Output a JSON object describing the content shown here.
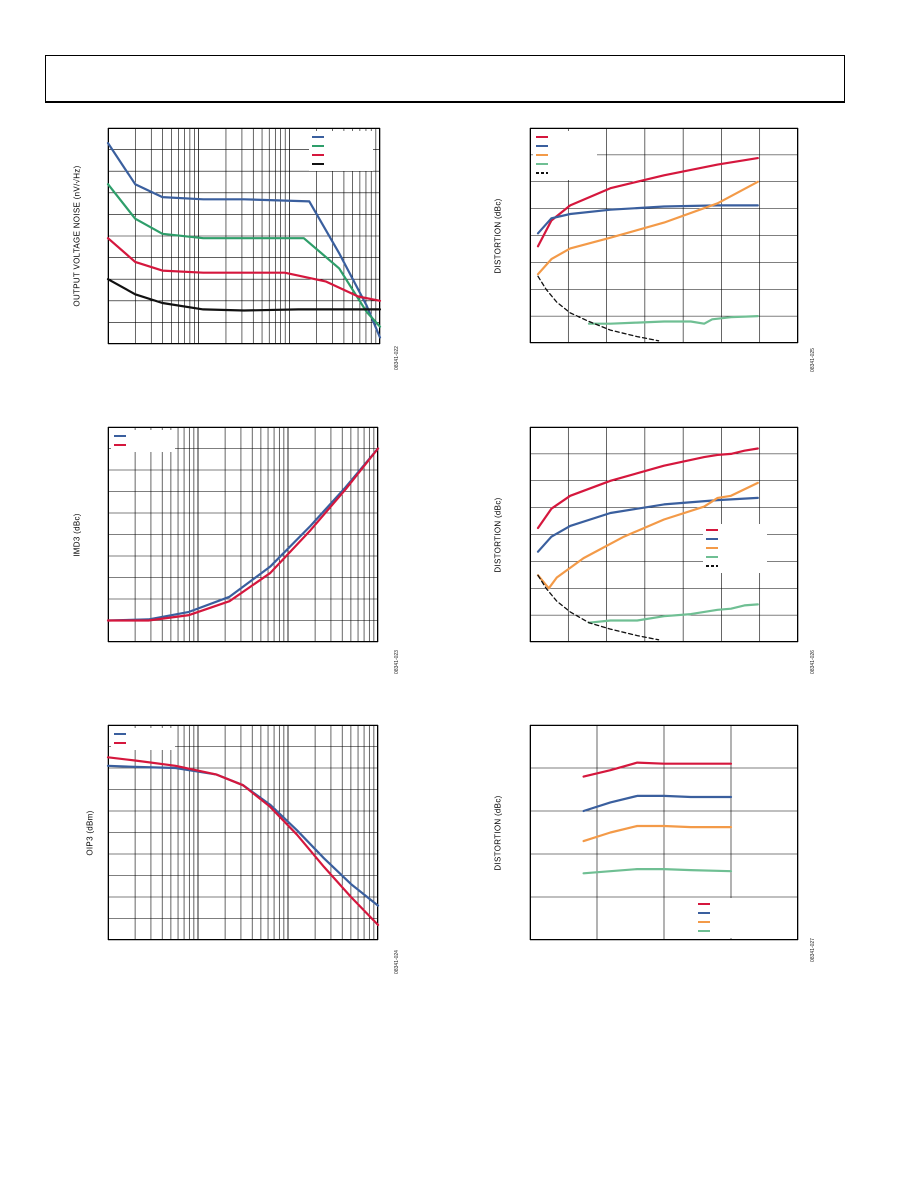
{
  "header": {
    "title": ""
  },
  "chart_data": [
    {
      "id": "c1",
      "type": "line",
      "ylabel": "OUTPUT VOLTAGE NOISE (nV/√Hz)",
      "figure_id": "08341-022",
      "xscale": "log",
      "xlim": [
        0,
        1
      ],
      "ylim": [
        0,
        1
      ],
      "grid": true,
      "legend_position": "top-right",
      "series": [
        {
          "color": "#3a5f9e",
          "points": [
            [
              0,
              0.93
            ],
            [
              0.1,
              0.74
            ],
            [
              0.2,
              0.68
            ],
            [
              0.35,
              0.67
            ],
            [
              0.5,
              0.67
            ],
            [
              0.74,
              0.66
            ],
            [
              0.85,
              0.42
            ],
            [
              0.95,
              0.18
            ],
            [
              1,
              0.03
            ]
          ]
        },
        {
          "color": "#2e9e6a",
          "points": [
            [
              0,
              0.74
            ],
            [
              0.1,
              0.58
            ],
            [
              0.2,
              0.51
            ],
            [
              0.35,
              0.49
            ],
            [
              0.5,
              0.49
            ],
            [
              0.72,
              0.49
            ],
            [
              0.85,
              0.35
            ],
            [
              0.95,
              0.15
            ],
            [
              1,
              0.08
            ]
          ]
        },
        {
          "color": "#d5173d",
          "points": [
            [
              0,
              0.49
            ],
            [
              0.1,
              0.38
            ],
            [
              0.2,
              0.34
            ],
            [
              0.35,
              0.33
            ],
            [
              0.5,
              0.33
            ],
            [
              0.65,
              0.33
            ],
            [
              0.8,
              0.29
            ],
            [
              0.92,
              0.22
            ],
            [
              1,
              0.2
            ]
          ]
        },
        {
          "color": "#111111",
          "points": [
            [
              0,
              0.3
            ],
            [
              0.1,
              0.23
            ],
            [
              0.2,
              0.19
            ],
            [
              0.35,
              0.16
            ],
            [
              0.5,
              0.155
            ],
            [
              0.7,
              0.16
            ],
            [
              0.85,
              0.16
            ],
            [
              1,
              0.16
            ]
          ]
        }
      ]
    },
    {
      "id": "c2",
      "type": "line",
      "ylabel": "DISTORTION (dBc)",
      "figure_id": "08341-025",
      "xscale": "linear",
      "xlim": [
        0,
        1
      ],
      "ylim": [
        0,
        1
      ],
      "grid": true,
      "legend_position": "top-left",
      "series": [
        {
          "color": "#d5173d",
          "points": [
            [
              0.03,
              0.45
            ],
            [
              0.08,
              0.57
            ],
            [
              0.15,
              0.64
            ],
            [
              0.3,
              0.72
            ],
            [
              0.5,
              0.78
            ],
            [
              0.7,
              0.83
            ],
            [
              0.85,
              0.86
            ]
          ]
        },
        {
          "color": "#3a5f9e",
          "points": [
            [
              0.03,
              0.51
            ],
            [
              0.08,
              0.58
            ],
            [
              0.15,
              0.6
            ],
            [
              0.3,
              0.62
            ],
            [
              0.5,
              0.635
            ],
            [
              0.7,
              0.64
            ],
            [
              0.85,
              0.64
            ]
          ]
        },
        {
          "color": "#f39a48",
          "points": [
            [
              0.03,
              0.32
            ],
            [
              0.08,
              0.39
            ],
            [
              0.15,
              0.44
            ],
            [
              0.3,
              0.49
            ],
            [
              0.5,
              0.56
            ],
            [
              0.7,
              0.65
            ],
            [
              0.85,
              0.75
            ]
          ]
        },
        {
          "color": "#6fbf93",
          "points": [
            [
              0.22,
              0.09
            ],
            [
              0.3,
              0.09
            ],
            [
              0.4,
              0.095
            ],
            [
              0.5,
              0.1
            ],
            [
              0.6,
              0.1
            ],
            [
              0.65,
              0.09
            ],
            [
              0.68,
              0.11
            ],
            [
              0.75,
              0.12
            ],
            [
              0.85,
              0.125
            ]
          ]
        },
        {
          "color": "#111111",
          "dashed": true,
          "points": [
            [
              0.03,
              0.31
            ],
            [
              0.06,
              0.25
            ],
            [
              0.1,
              0.19
            ],
            [
              0.15,
              0.14
            ],
            [
              0.22,
              0.1
            ],
            [
              0.3,
              0.06
            ],
            [
              0.4,
              0.03
            ],
            [
              0.48,
              0.01
            ]
          ]
        }
      ]
    },
    {
      "id": "c3",
      "type": "line",
      "ylabel": "IMD3 (dBc)",
      "figure_id": "08341-023",
      "xscale": "log",
      "xlim": [
        0,
        1
      ],
      "ylim": [
        0,
        1
      ],
      "grid": true,
      "legend_position": "top-left",
      "series": [
        {
          "color": "#3a5f9e",
          "points": [
            [
              0,
              0.1
            ],
            [
              0.15,
              0.105
            ],
            [
              0.3,
              0.14
            ],
            [
              0.45,
              0.21
            ],
            [
              0.6,
              0.35
            ],
            [
              0.75,
              0.54
            ],
            [
              0.88,
              0.72
            ],
            [
              1,
              0.9
            ]
          ]
        },
        {
          "color": "#d5173d",
          "points": [
            [
              0,
              0.1
            ],
            [
              0.15,
              0.1
            ],
            [
              0.3,
              0.125
            ],
            [
              0.45,
              0.19
            ],
            [
              0.6,
              0.32
            ],
            [
              0.75,
              0.52
            ],
            [
              0.88,
              0.71
            ],
            [
              1,
              0.9
            ]
          ]
        }
      ]
    },
    {
      "id": "c4",
      "type": "line",
      "ylabel": "DISTORTION (dBc)",
      "figure_id": "08341-026",
      "xscale": "linear",
      "xlim": [
        0,
        1
      ],
      "ylim": [
        0,
        1
      ],
      "grid": true,
      "legend_position": "right",
      "series": [
        {
          "color": "#d5173d",
          "points": [
            [
              0.03,
              0.53
            ],
            [
              0.08,
              0.62
            ],
            [
              0.15,
              0.68
            ],
            [
              0.3,
              0.75
            ],
            [
              0.5,
              0.82
            ],
            [
              0.65,
              0.86
            ],
            [
              0.7,
              0.87
            ],
            [
              0.75,
              0.875
            ],
            [
              0.8,
              0.89
            ],
            [
              0.85,
              0.9
            ]
          ]
        },
        {
          "color": "#3a5f9e",
          "points": [
            [
              0.03,
              0.42
            ],
            [
              0.08,
              0.49
            ],
            [
              0.15,
              0.54
            ],
            [
              0.3,
              0.6
            ],
            [
              0.5,
              0.64
            ],
            [
              0.7,
              0.66
            ],
            [
              0.85,
              0.67
            ]
          ]
        },
        {
          "color": "#f39a48",
          "points": [
            [
              0.03,
              0.31
            ],
            [
              0.07,
              0.25
            ],
            [
              0.1,
              0.3
            ],
            [
              0.2,
              0.39
            ],
            [
              0.35,
              0.49
            ],
            [
              0.5,
              0.57
            ],
            [
              0.65,
              0.63
            ],
            [
              0.7,
              0.67
            ],
            [
              0.75,
              0.68
            ],
            [
              0.85,
              0.74
            ]
          ]
        },
        {
          "color": "#6fbf93",
          "points": [
            [
              0.22,
              0.09
            ],
            [
              0.3,
              0.1
            ],
            [
              0.4,
              0.1
            ],
            [
              0.5,
              0.12
            ],
            [
              0.6,
              0.13
            ],
            [
              0.65,
              0.14
            ],
            [
              0.7,
              0.15
            ],
            [
              0.75,
              0.155
            ],
            [
              0.8,
              0.17
            ],
            [
              0.85,
              0.175
            ]
          ]
        },
        {
          "color": "#111111",
          "dashed": true,
          "points": [
            [
              0.03,
              0.31
            ],
            [
              0.06,
              0.25
            ],
            [
              0.1,
              0.19
            ],
            [
              0.15,
              0.14
            ],
            [
              0.22,
              0.09
            ],
            [
              0.3,
              0.06
            ],
            [
              0.4,
              0.03
            ],
            [
              0.48,
              0.01
            ]
          ]
        }
      ]
    },
    {
      "id": "c5",
      "type": "line",
      "ylabel": "OIP3 (dBm)",
      "figure_id": "08341-024",
      "xscale": "log",
      "xlim": [
        0,
        1
      ],
      "ylim": [
        0,
        1
      ],
      "grid": true,
      "legend_position": "top-left",
      "series": [
        {
          "color": "#3a5f9e",
          "points": [
            [
              0,
              0.81
            ],
            [
              0.1,
              0.805
            ],
            [
              0.25,
              0.8
            ],
            [
              0.4,
              0.77
            ],
            [
              0.5,
              0.72
            ],
            [
              0.6,
              0.63
            ],
            [
              0.7,
              0.51
            ],
            [
              0.8,
              0.38
            ],
            [
              0.9,
              0.26
            ],
            [
              1,
              0.16
            ]
          ]
        },
        {
          "color": "#d5173d",
          "points": [
            [
              0,
              0.85
            ],
            [
              0.1,
              0.835
            ],
            [
              0.25,
              0.81
            ],
            [
              0.4,
              0.77
            ],
            [
              0.5,
              0.72
            ],
            [
              0.6,
              0.62
            ],
            [
              0.7,
              0.49
            ],
            [
              0.8,
              0.34
            ],
            [
              0.9,
              0.2
            ],
            [
              1,
              0.07
            ]
          ]
        }
      ]
    },
    {
      "id": "c6",
      "type": "line",
      "ylabel": "DISTORTION (dBc)",
      "figure_id": "08341-027",
      "xscale": "linear",
      "xlim": [
        0,
        1
      ],
      "ylim": [
        0,
        1
      ],
      "grid": true,
      "legend_position": "bottom-right",
      "series": [
        {
          "color": "#d5173d",
          "points": [
            [
              0.2,
              0.76
            ],
            [
              0.3,
              0.79
            ],
            [
              0.4,
              0.825
            ],
            [
              0.5,
              0.82
            ],
            [
              0.6,
              0.82
            ],
            [
              0.75,
              0.82
            ]
          ]
        },
        {
          "color": "#3a5f9e",
          "points": [
            [
              0.2,
              0.6
            ],
            [
              0.3,
              0.64
            ],
            [
              0.4,
              0.67
            ],
            [
              0.5,
              0.67
            ],
            [
              0.6,
              0.665
            ],
            [
              0.75,
              0.665
            ]
          ]
        },
        {
          "color": "#f39a48",
          "points": [
            [
              0.2,
              0.46
            ],
            [
              0.3,
              0.5
            ],
            [
              0.4,
              0.53
            ],
            [
              0.5,
              0.53
            ],
            [
              0.6,
              0.525
            ],
            [
              0.75,
              0.525
            ]
          ]
        },
        {
          "color": "#6fbf93",
          "points": [
            [
              0.2,
              0.31
            ],
            [
              0.3,
              0.32
            ],
            [
              0.4,
              0.33
            ],
            [
              0.5,
              0.33
            ],
            [
              0.6,
              0.325
            ],
            [
              0.75,
              0.32
            ]
          ]
        }
      ]
    }
  ]
}
